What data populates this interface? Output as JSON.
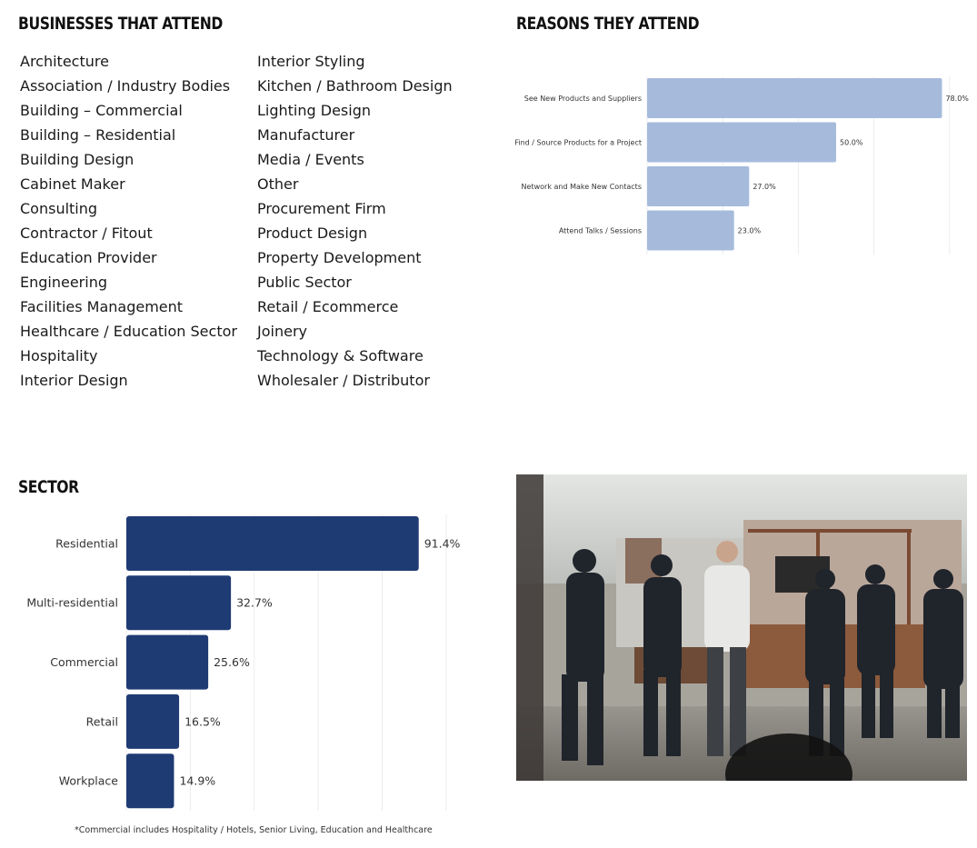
{
  "headings": {
    "businesses": "BUSINESSES THAT ATTEND",
    "reasons": "REASONS THEY ATTEND",
    "sector": "SECTOR"
  },
  "businesses": {
    "column1": [
      "Architecture",
      "Association / Industry Bodies",
      "Building – Commercial",
      "Building – Residential",
      "Building Design",
      "Cabinet Maker",
      "Consulting",
      "Contractor / Fitout",
      "Education Provider",
      "Engineering",
      "Facilities Management",
      "Healthcare / Education Sector",
      "Hospitality",
      "Interior Design"
    ],
    "column2": [
      "Interior Styling",
      "Kitchen / Bathroom Design",
      "Lighting Design",
      "Manufacturer",
      "Media / Events",
      "Other",
      "Procurement Firm",
      "Product Design",
      "Property Development",
      "Public Sector",
      "Retail / Ecommerce",
      "Joinery",
      "Technology & Software",
      "Wholesaler / Distributor"
    ]
  },
  "chart_data": [
    {
      "type": "bar",
      "orientation": "horizontal",
      "categories": [
        "See New Products and Suppliers",
        "Find / Source Products for a Project",
        "Network and Make New Contacts",
        "Attend Talks / Sessions"
      ],
      "values": [
        78.0,
        50.0,
        27.0,
        23.0
      ],
      "value_labels": [
        "78.0%",
        "50.0%",
        "27.0%",
        "23.0%"
      ],
      "xlim": [
        0,
        100
      ],
      "grid": true,
      "color": "#a6bbdc"
    },
    {
      "type": "bar",
      "orientation": "horizontal",
      "categories": [
        "Residential",
        "Multi-residential",
        "Commercial",
        "Retail",
        "Workplace"
      ],
      "values": [
        91.4,
        32.7,
        25.6,
        16.5,
        14.9
      ],
      "value_labels": [
        "91.4%",
        "32.7%",
        "25.6%",
        "16.5%",
        "14.9%"
      ],
      "xlim": [
        0,
        100
      ],
      "grid": true,
      "color": "#1f3b73",
      "footnote": "*Commercial includes Hospitality / Hotels, Senior Living, Education and Healthcare"
    }
  ],
  "photo": {
    "icon": "expo-networking-photo"
  }
}
